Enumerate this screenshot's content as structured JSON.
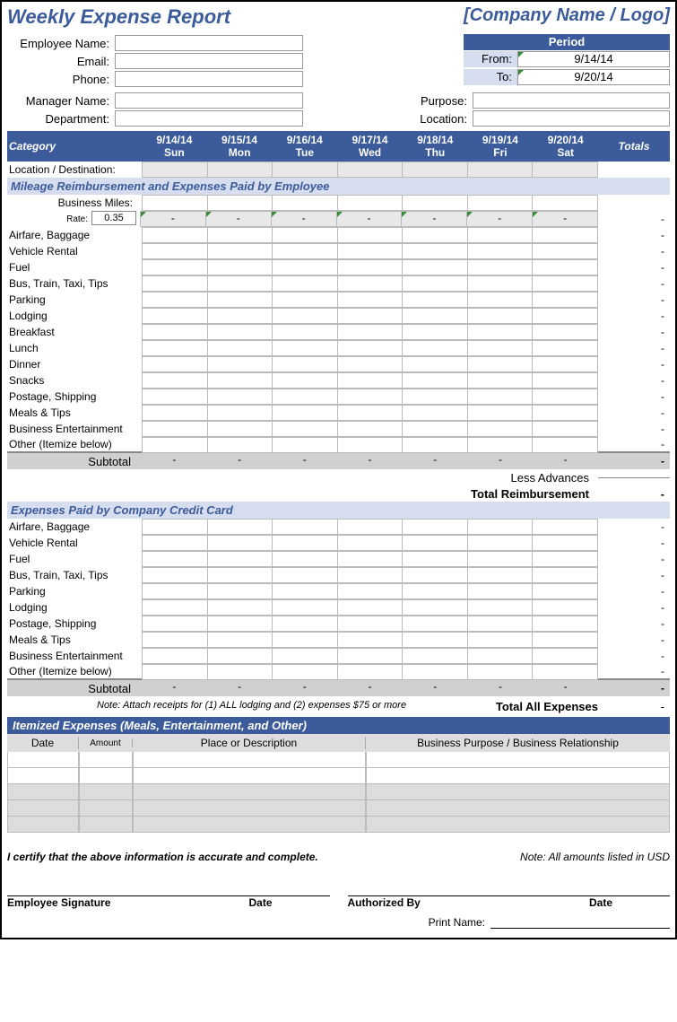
{
  "title": "Weekly Expense Report",
  "company": "[Company Name / Logo]",
  "employee_fields": [
    {
      "label": "Employee Name:",
      "value": ""
    },
    {
      "label": "Email:",
      "value": ""
    },
    {
      "label": "Phone:",
      "value": ""
    }
  ],
  "manager_fields": [
    {
      "label": "Manager Name:",
      "value": ""
    },
    {
      "label": "Department:",
      "value": ""
    }
  ],
  "period": {
    "header": "Period",
    "from_label": "From:",
    "from_value": "9/14/14",
    "to_label": "To:",
    "to_value": "9/20/14"
  },
  "purpose_fields": [
    {
      "label": "Purpose:",
      "value": ""
    },
    {
      "label": "Location:",
      "value": ""
    }
  ],
  "grid": {
    "category_header": "Category",
    "totals_header": "Totals",
    "days": [
      {
        "date": "9/14/14",
        "dow": "Sun"
      },
      {
        "date": "9/15/14",
        "dow": "Mon"
      },
      {
        "date": "9/16/14",
        "dow": "Tue"
      },
      {
        "date": "9/17/14",
        "dow": "Wed"
      },
      {
        "date": "9/18/14",
        "dow": "Thu"
      },
      {
        "date": "9/19/14",
        "dow": "Fri"
      },
      {
        "date": "9/20/14",
        "dow": "Sat"
      }
    ],
    "location_row": "Location / Destination:",
    "dash": "-"
  },
  "section1": {
    "title": "Mileage Reimbursement and Expenses Paid by Employee",
    "miles_label": "Business Miles:",
    "rate_label": "Rate:",
    "rate_value": "0.35",
    "categories": [
      "Airfare, Baggage",
      "Vehicle Rental",
      "Fuel",
      "Bus, Train, Taxi, Tips",
      "Parking",
      "Lodging",
      "Breakfast",
      "Lunch",
      "Dinner",
      "Snacks",
      "Postage, Shipping",
      "Meals & Tips",
      "Business Entertainment",
      "Other (Itemize below)"
    ],
    "subtotal": "Subtotal",
    "less_advances": "Less Advances",
    "total_reimbursement": "Total Reimbursement"
  },
  "section2": {
    "title": "Expenses Paid by Company Credit Card",
    "categories": [
      "Airfare, Baggage",
      "Vehicle Rental",
      "Fuel",
      "Bus, Train, Taxi, Tips",
      "Parking",
      "Lodging",
      "Postage, Shipping",
      "Meals & Tips",
      "Business Entertainment",
      "Other (Itemize below)"
    ],
    "subtotal": "Subtotal",
    "note": "Note:   Attach receipts for (1) ALL lodging and (2) expenses $75 or more",
    "total_all": "Total All Expenses"
  },
  "itemized": {
    "title": "Itemized Expenses (Meals, Entertainment, and Other)",
    "cols": {
      "date": "Date",
      "amount": "Amount",
      "place": "Place or Description",
      "purpose": "Business Purpose / Business Relationship"
    },
    "row_count": 5
  },
  "footer": {
    "certify": "I certify that the above information is accurate and complete.",
    "currency_note": "Note: All amounts listed in USD",
    "emp_sig": "Employee Signature",
    "date": "Date",
    "auth_by": "Authorized By",
    "print_name": "Print Name:"
  },
  "colors": {
    "primary": "#3b5b9a",
    "light": "#d6ddef",
    "gray": "#d0d0d0",
    "border": "#bbbbbb"
  }
}
